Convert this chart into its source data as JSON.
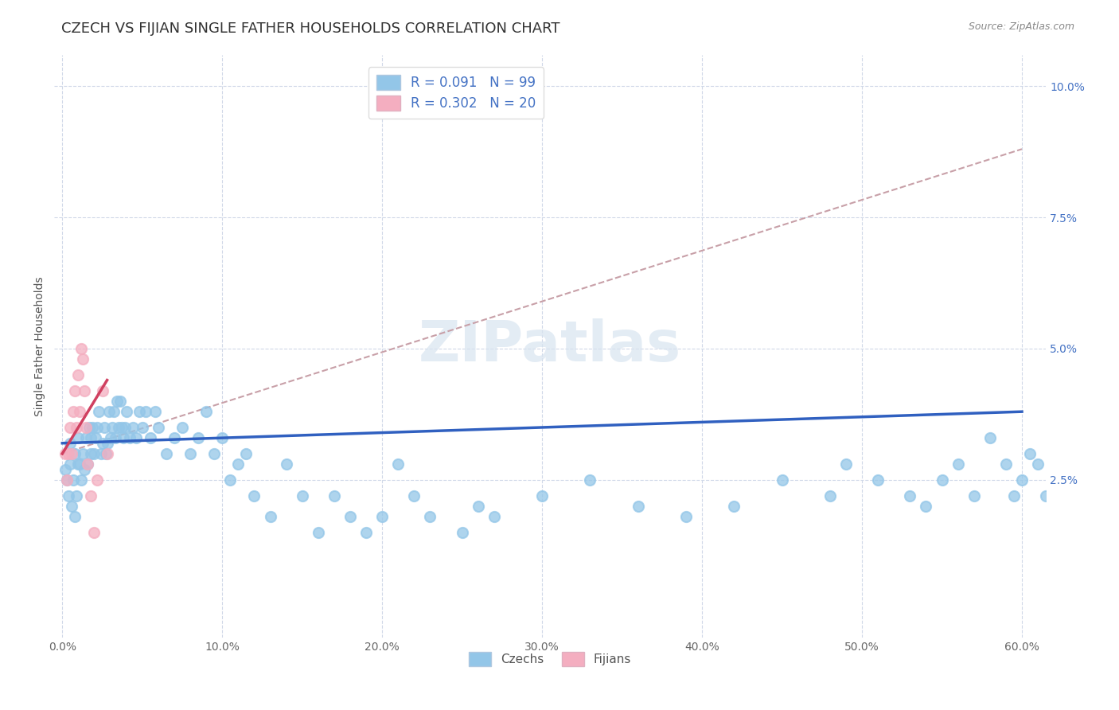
{
  "title": "CZECH VS FIJIAN SINGLE FATHER HOUSEHOLDS CORRELATION CHART",
  "source": "Source: ZipAtlas.com",
  "ylabel": "Single Father Households",
  "xlim": [
    -0.005,
    0.615
  ],
  "ylim": [
    -0.005,
    0.106
  ],
  "xticks": [
    0.0,
    0.1,
    0.2,
    0.3,
    0.4,
    0.5,
    0.6
  ],
  "xticklabels": [
    "0.0%",
    "10.0%",
    "20.0%",
    "30.0%",
    "40.0%",
    "50.0%",
    "60.0%"
  ],
  "yticks": [
    0.025,
    0.05,
    0.075,
    0.1
  ],
  "yticklabels": [
    "2.5%",
    "5.0%",
    "7.5%",
    "10.0%"
  ],
  "czech_color": "#93c6e8",
  "fijian_color": "#f4aec0",
  "legend_label_czech": "R = 0.091   N = 99",
  "legend_label_fijian": "R = 0.302   N = 20",
  "bottom_legend_czechs": "Czechs",
  "bottom_legend_fijians": "Fijians",
  "watermark": "ZIPatlas",
  "title_fontsize": 13,
  "axis_label_fontsize": 10,
  "tick_fontsize": 10,
  "czech_scatter_x": [
    0.002,
    0.003,
    0.004,
    0.005,
    0.005,
    0.006,
    0.007,
    0.008,
    0.008,
    0.009,
    0.01,
    0.01,
    0.011,
    0.012,
    0.013,
    0.014,
    0.015,
    0.016,
    0.017,
    0.018,
    0.018,
    0.019,
    0.02,
    0.021,
    0.022,
    0.023,
    0.024,
    0.025,
    0.026,
    0.027,
    0.028,
    0.029,
    0.03,
    0.031,
    0.032,
    0.033,
    0.034,
    0.035,
    0.036,
    0.037,
    0.038,
    0.039,
    0.04,
    0.042,
    0.044,
    0.046,
    0.048,
    0.05,
    0.052,
    0.055,
    0.058,
    0.06,
    0.065,
    0.07,
    0.075,
    0.08,
    0.085,
    0.09,
    0.095,
    0.1,
    0.105,
    0.11,
    0.115,
    0.12,
    0.13,
    0.14,
    0.15,
    0.16,
    0.17,
    0.18,
    0.19,
    0.2,
    0.21,
    0.22,
    0.23,
    0.25,
    0.26,
    0.27,
    0.3,
    0.33,
    0.36,
    0.39,
    0.42,
    0.45,
    0.48,
    0.49,
    0.51,
    0.53,
    0.54,
    0.55,
    0.56,
    0.57,
    0.58,
    0.59,
    0.595,
    0.6,
    0.605,
    0.61,
    0.615
  ],
  "czech_scatter_y": [
    0.027,
    0.025,
    0.022,
    0.028,
    0.032,
    0.02,
    0.025,
    0.03,
    0.018,
    0.022,
    0.028,
    0.033,
    0.028,
    0.025,
    0.03,
    0.027,
    0.033,
    0.028,
    0.035,
    0.03,
    0.033,
    0.035,
    0.03,
    0.033,
    0.035,
    0.038,
    0.03,
    0.032,
    0.035,
    0.03,
    0.032,
    0.038,
    0.033,
    0.035,
    0.038,
    0.033,
    0.04,
    0.035,
    0.04,
    0.035,
    0.033,
    0.035,
    0.038,
    0.033,
    0.035,
    0.033,
    0.038,
    0.035,
    0.038,
    0.033,
    0.038,
    0.035,
    0.03,
    0.033,
    0.035,
    0.03,
    0.033,
    0.038,
    0.03,
    0.033,
    0.025,
    0.028,
    0.03,
    0.022,
    0.018,
    0.028,
    0.022,
    0.015,
    0.022,
    0.018,
    0.015,
    0.018,
    0.028,
    0.022,
    0.018,
    0.015,
    0.02,
    0.018,
    0.022,
    0.025,
    0.02,
    0.018,
    0.02,
    0.025,
    0.022,
    0.028,
    0.025,
    0.022,
    0.02,
    0.025,
    0.028,
    0.022,
    0.033,
    0.028,
    0.022,
    0.025,
    0.03,
    0.028,
    0.022
  ],
  "fijian_scatter_x": [
    0.002,
    0.003,
    0.004,
    0.005,
    0.006,
    0.007,
    0.008,
    0.009,
    0.01,
    0.011,
    0.012,
    0.013,
    0.014,
    0.015,
    0.016,
    0.018,
    0.02,
    0.022,
    0.025,
    0.028
  ],
  "fijian_scatter_y": [
    0.03,
    0.025,
    0.03,
    0.035,
    0.03,
    0.038,
    0.042,
    0.035,
    0.045,
    0.038,
    0.05,
    0.048,
    0.042,
    0.035,
    0.028,
    0.022,
    0.015,
    0.025,
    0.042,
    0.03
  ],
  "czech_line_x": [
    0.0,
    0.6
  ],
  "czech_line_y": [
    0.032,
    0.038
  ],
  "fijian_line_x": [
    0.0,
    0.028
  ],
  "fijian_line_y": [
    0.03,
    0.044
  ],
  "trend_line_x": [
    0.0,
    0.6
  ],
  "trend_line_y": [
    0.03,
    0.088
  ]
}
